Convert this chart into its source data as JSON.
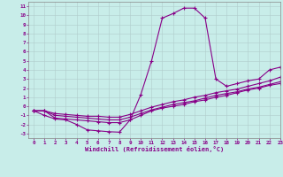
{
  "xlabel": "Windchill (Refroidissement éolien,°C)",
  "xlim": [
    -0.5,
    23
  ],
  "ylim": [
    -3.5,
    11.5
  ],
  "xticks": [
    0,
    1,
    2,
    3,
    4,
    5,
    6,
    7,
    8,
    9,
    10,
    11,
    12,
    13,
    14,
    15,
    16,
    17,
    18,
    19,
    20,
    21,
    22,
    23
  ],
  "yticks": [
    -3,
    -2,
    -1,
    0,
    1,
    2,
    3,
    4,
    5,
    6,
    7,
    8,
    9,
    10,
    11
  ],
  "background_color": "#c8ede9",
  "grid_color": "#b0cccb",
  "line_color": "#880088",
  "curve1_x": [
    0,
    1,
    2,
    3,
    4,
    5,
    6,
    7,
    8,
    9,
    10,
    11,
    12,
    13,
    14,
    15,
    16,
    17,
    18,
    19,
    20,
    21,
    22,
    23
  ],
  "curve1_y": [
    -0.5,
    -1.0,
    -1.4,
    -1.5,
    -2.0,
    -2.6,
    -2.7,
    -2.8,
    -2.85,
    -1.5,
    1.3,
    5.0,
    9.7,
    10.2,
    10.8,
    10.8,
    9.7,
    3.0,
    2.2,
    2.5,
    2.8,
    3.0,
    4.0,
    4.3
  ],
  "curve2_x": [
    0,
    1,
    2,
    3,
    4,
    5,
    6,
    7,
    8,
    9,
    10,
    11,
    12,
    13,
    14,
    15,
    16,
    17,
    18,
    19,
    20,
    21,
    22,
    23
  ],
  "curve2_y": [
    -0.5,
    -0.5,
    -1.3,
    -1.4,
    -1.5,
    -1.6,
    -1.7,
    -1.8,
    -1.8,
    -1.5,
    -1.0,
    -0.5,
    -0.2,
    0.0,
    0.2,
    0.5,
    0.7,
    1.0,
    1.2,
    1.5,
    1.8,
    2.0,
    2.3,
    2.5
  ],
  "curve3_x": [
    0,
    1,
    2,
    3,
    4,
    5,
    6,
    7,
    8,
    9,
    10,
    11,
    12,
    13,
    14,
    15,
    16,
    17,
    18,
    19,
    20,
    21,
    22,
    23
  ],
  "curve3_y": [
    -0.5,
    -0.5,
    -1.0,
    -1.1,
    -1.2,
    -1.3,
    -1.4,
    -1.5,
    -1.5,
    -1.2,
    -0.8,
    -0.4,
    -0.1,
    0.2,
    0.4,
    0.6,
    0.9,
    1.2,
    1.4,
    1.6,
    1.9,
    2.1,
    2.4,
    2.7
  ],
  "curve4_x": [
    0,
    1,
    2,
    3,
    4,
    5,
    6,
    7,
    8,
    9,
    10,
    11,
    12,
    13,
    14,
    15,
    16,
    17,
    18,
    19,
    20,
    21,
    22,
    23
  ],
  "curve4_y": [
    -0.5,
    -0.5,
    -0.8,
    -0.9,
    -1.0,
    -1.1,
    -1.1,
    -1.2,
    -1.2,
    -0.9,
    -0.5,
    -0.1,
    0.2,
    0.5,
    0.7,
    1.0,
    1.2,
    1.5,
    1.7,
    1.9,
    2.2,
    2.5,
    2.8,
    3.2
  ]
}
